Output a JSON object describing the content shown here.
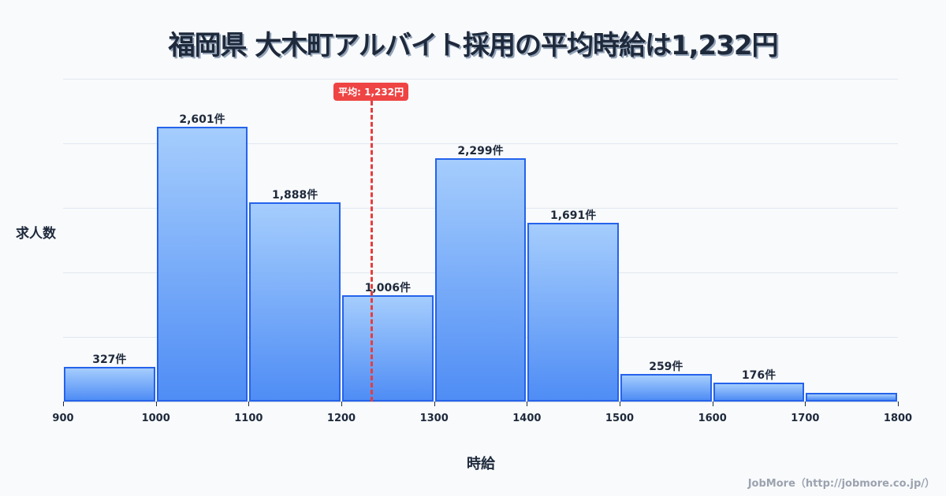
{
  "title": "福岡県 大木町アルバイト採用の平均時給は1,232円",
  "mean_badge": "平均: 1,232円",
  "ylabel": "求人数",
  "xlabel": "時給",
  "credit": "JobMore（http://jobmore.co.jp/）",
  "colors": {
    "bar_border": "#2563eb",
    "bar_top": "#a5cdfd",
    "bar_bottom": "#4f8df5",
    "mean_line": "#ef4444",
    "text": "#1e293b",
    "background": "#f8fafc"
  },
  "chart_data": {
    "type": "bar",
    "title": "福岡県 大木町アルバイト採用の平均時給は1,232円",
    "xlabel": "時給",
    "ylabel": "求人数",
    "categories": [
      "900-1000",
      "1000-1100",
      "1100-1200",
      "1200-1300",
      "1300-1400",
      "1400-1500",
      "1500-1600",
      "1600-1700",
      "1700-1800"
    ],
    "bin_edges": [
      900,
      1000,
      1100,
      1200,
      1300,
      1400,
      1500,
      1600,
      1700,
      1800
    ],
    "values": [
      327,
      2601,
      1888,
      1006,
      2299,
      1691,
      259,
      176,
      82
    ],
    "labels": [
      "327件",
      "2,601件",
      "1,888件",
      "1,006件",
      "2,299件",
      "1,691件",
      "259件",
      "176件",
      ""
    ],
    "xticks": [
      "900",
      "1000",
      "1100",
      "1200",
      "1300",
      "1400",
      "1500",
      "1600",
      "1700",
      "1800"
    ],
    "mean": 1232,
    "mean_label": "平均: 1,232円",
    "grid": true,
    "ylim": [
      0,
      3055
    ]
  }
}
